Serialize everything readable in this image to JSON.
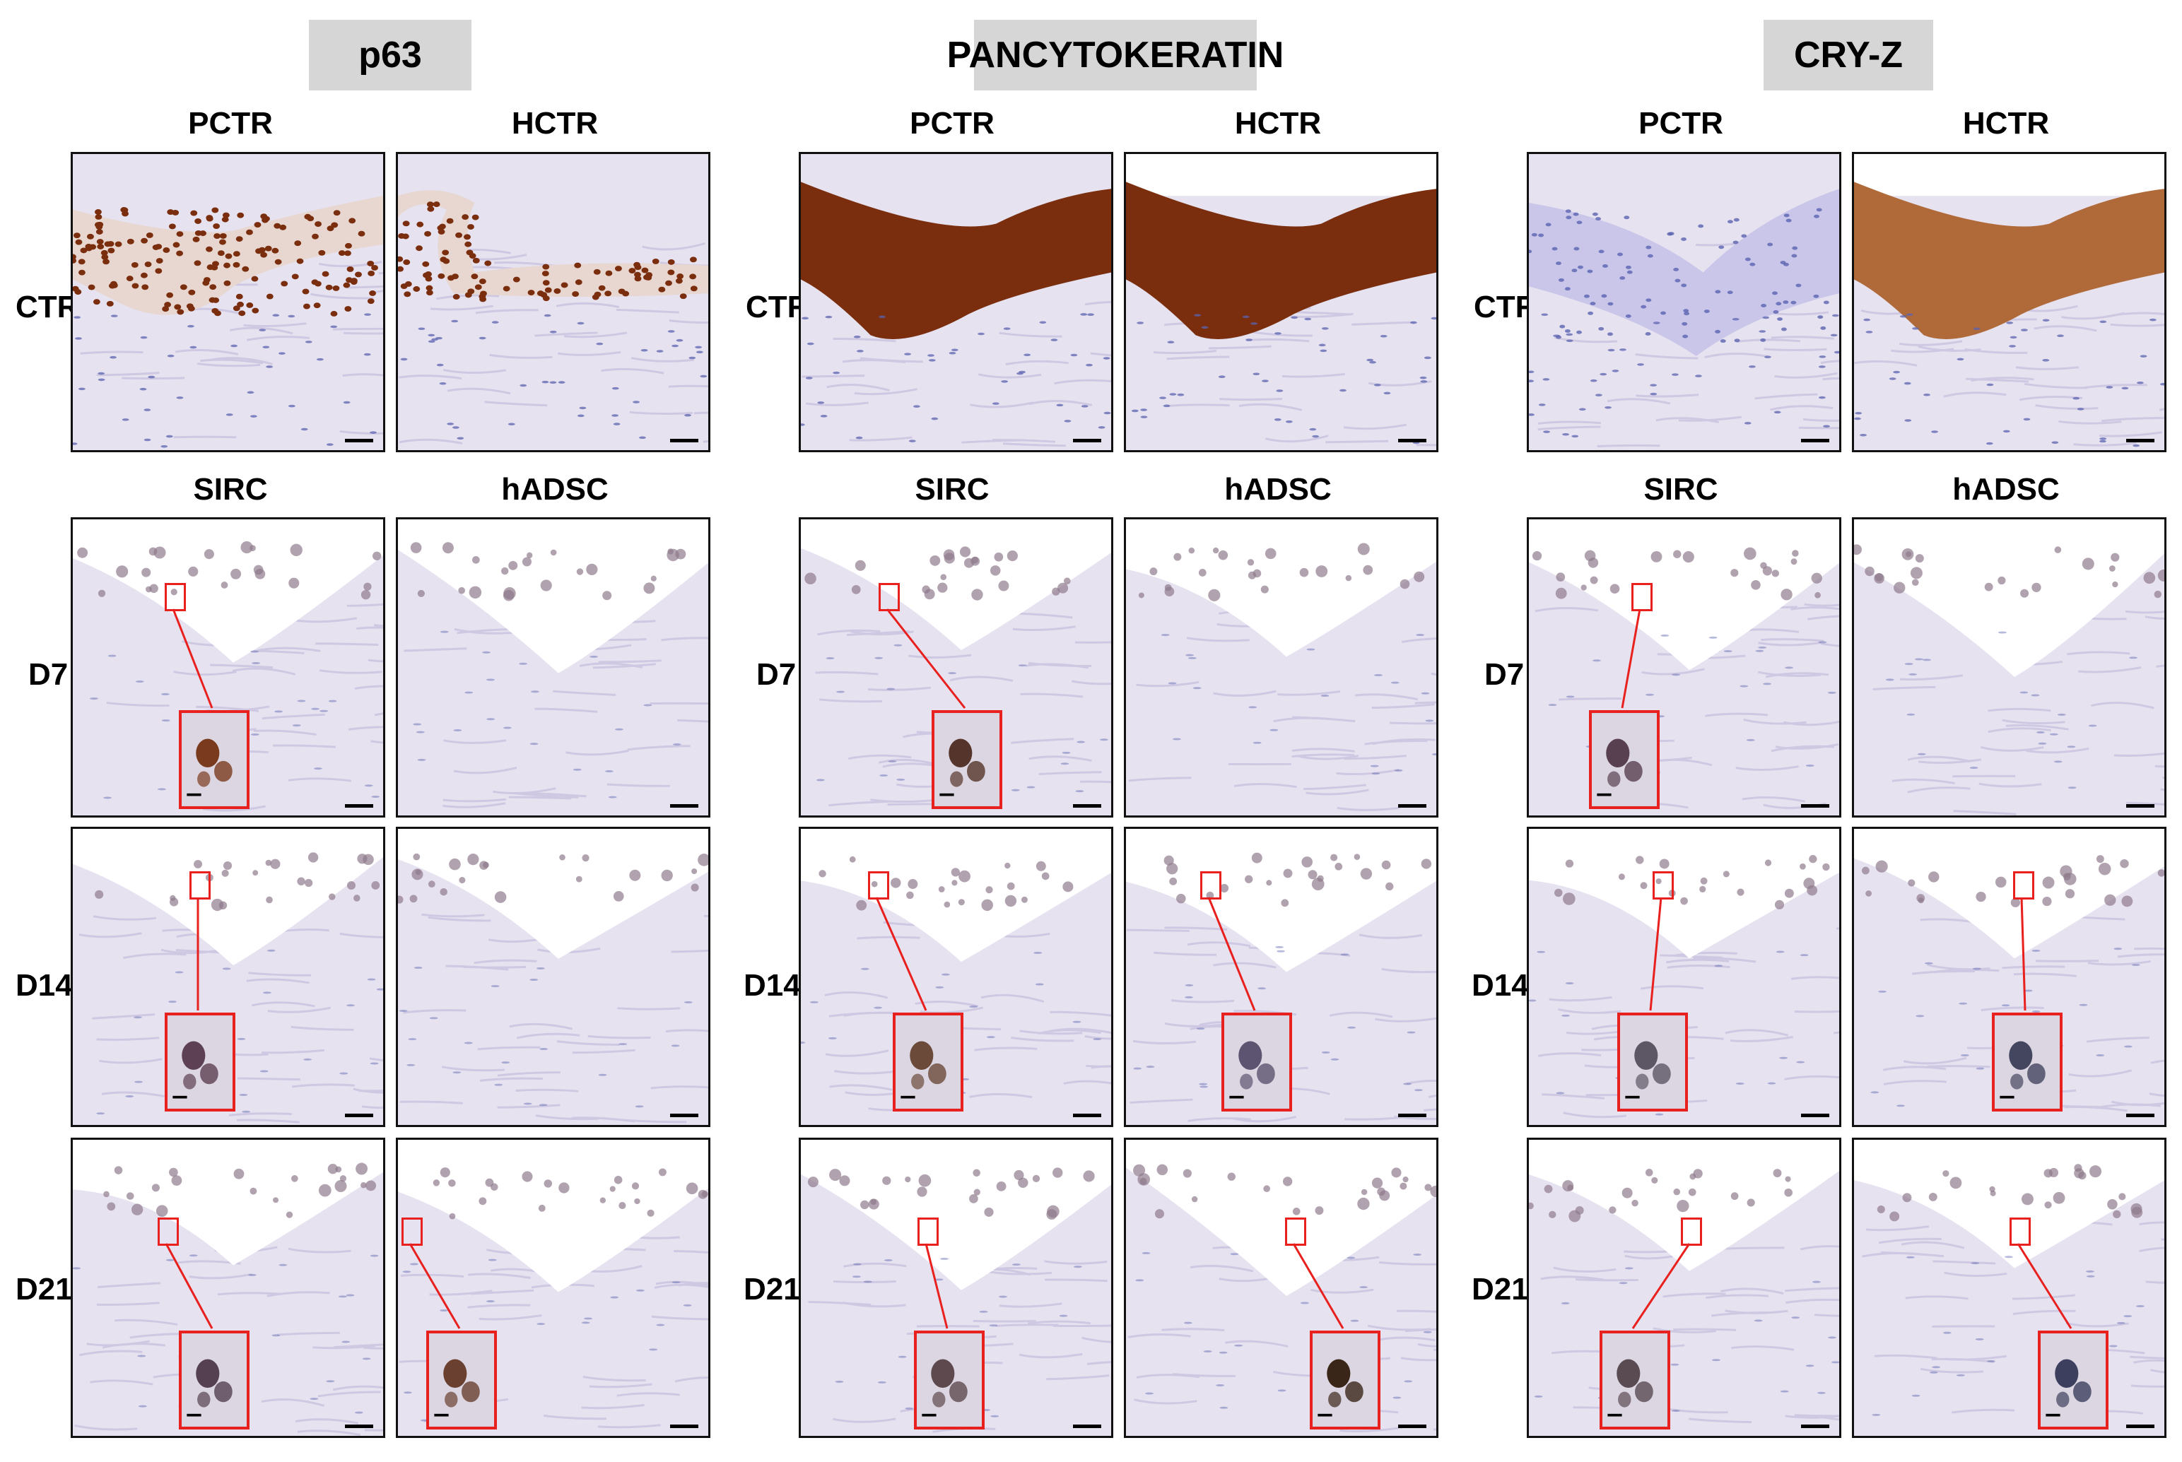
{
  "groups": [
    {
      "title": "p63",
      "columns": [
        "PCTR",
        "HCTR",
        "SIRC",
        "hADSC"
      ]
    },
    {
      "title": "PANCYTOKERATIN",
      "columns": [
        "PCTR",
        "HCTR",
        "SIRC",
        "hADSC"
      ]
    },
    {
      "title": "CRY-Z",
      "columns": [
        "PCTR",
        "HCTR",
        "SIRC",
        "hADSC"
      ]
    }
  ],
  "rows": [
    "CTR",
    "D7",
    "D14",
    "D21"
  ],
  "colors": {
    "dab_brown": "#7a2e0e",
    "hematoxylin_blue": "#5b63b0",
    "tissue_background": "#ebe7f3",
    "inset_border": "#e8201e",
    "header_fill": "#d6d6d6"
  }
}
